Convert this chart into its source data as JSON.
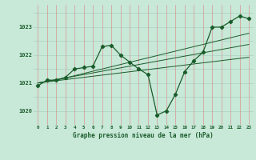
{
  "xlabel": "Graphe pression niveau de la mer (hPa)",
  "xlim": [
    -0.5,
    23.5
  ],
  "ylim": [
    1019.5,
    1023.8
  ],
  "yticks": [
    1020,
    1021,
    1022,
    1023
  ],
  "xticks": [
    0,
    1,
    2,
    3,
    4,
    5,
    6,
    7,
    8,
    9,
    10,
    11,
    12,
    13,
    14,
    15,
    16,
    17,
    18,
    19,
    20,
    21,
    22,
    23
  ],
  "bg_color": "#c8e8d8",
  "line_color": "#1a5c2a",
  "grid_color_v": "#e08080",
  "grid_color_h": "#a0ccbc",
  "main_series": [
    1020.9,
    1021.1,
    1021.1,
    1021.2,
    1021.5,
    1021.55,
    1021.6,
    1022.3,
    1022.35,
    1022.0,
    1021.75,
    1021.5,
    1021.3,
    1019.85,
    1020.0,
    1020.6,
    1021.4,
    1021.8,
    1022.1,
    1023.0,
    1023.0,
    1023.2,
    1023.4,
    1023.3
  ],
  "trend1": [
    1021.0,
    1021.05,
    1021.1,
    1021.18,
    1021.26,
    1021.34,
    1021.42,
    1021.5,
    1021.58,
    1021.66,
    1021.74,
    1021.82,
    1021.9,
    1021.98,
    1022.06,
    1022.14,
    1022.22,
    1022.3,
    1022.38,
    1022.46,
    1022.54,
    1022.62,
    1022.7,
    1022.78
  ],
  "trend2": [
    1021.0,
    1021.04,
    1021.08,
    1021.12,
    1021.16,
    1021.2,
    1021.24,
    1021.28,
    1021.32,
    1021.36,
    1021.4,
    1021.44,
    1021.48,
    1021.52,
    1021.56,
    1021.6,
    1021.64,
    1021.68,
    1021.72,
    1021.76,
    1021.8,
    1021.84,
    1021.88,
    1021.92
  ],
  "trend3": [
    1021.0,
    1021.06,
    1021.12,
    1021.18,
    1021.24,
    1021.3,
    1021.36,
    1021.42,
    1021.48,
    1021.54,
    1021.6,
    1021.66,
    1021.72,
    1021.78,
    1021.84,
    1021.9,
    1021.96,
    1022.02,
    1022.08,
    1022.14,
    1022.2,
    1022.26,
    1022.32,
    1022.38
  ]
}
